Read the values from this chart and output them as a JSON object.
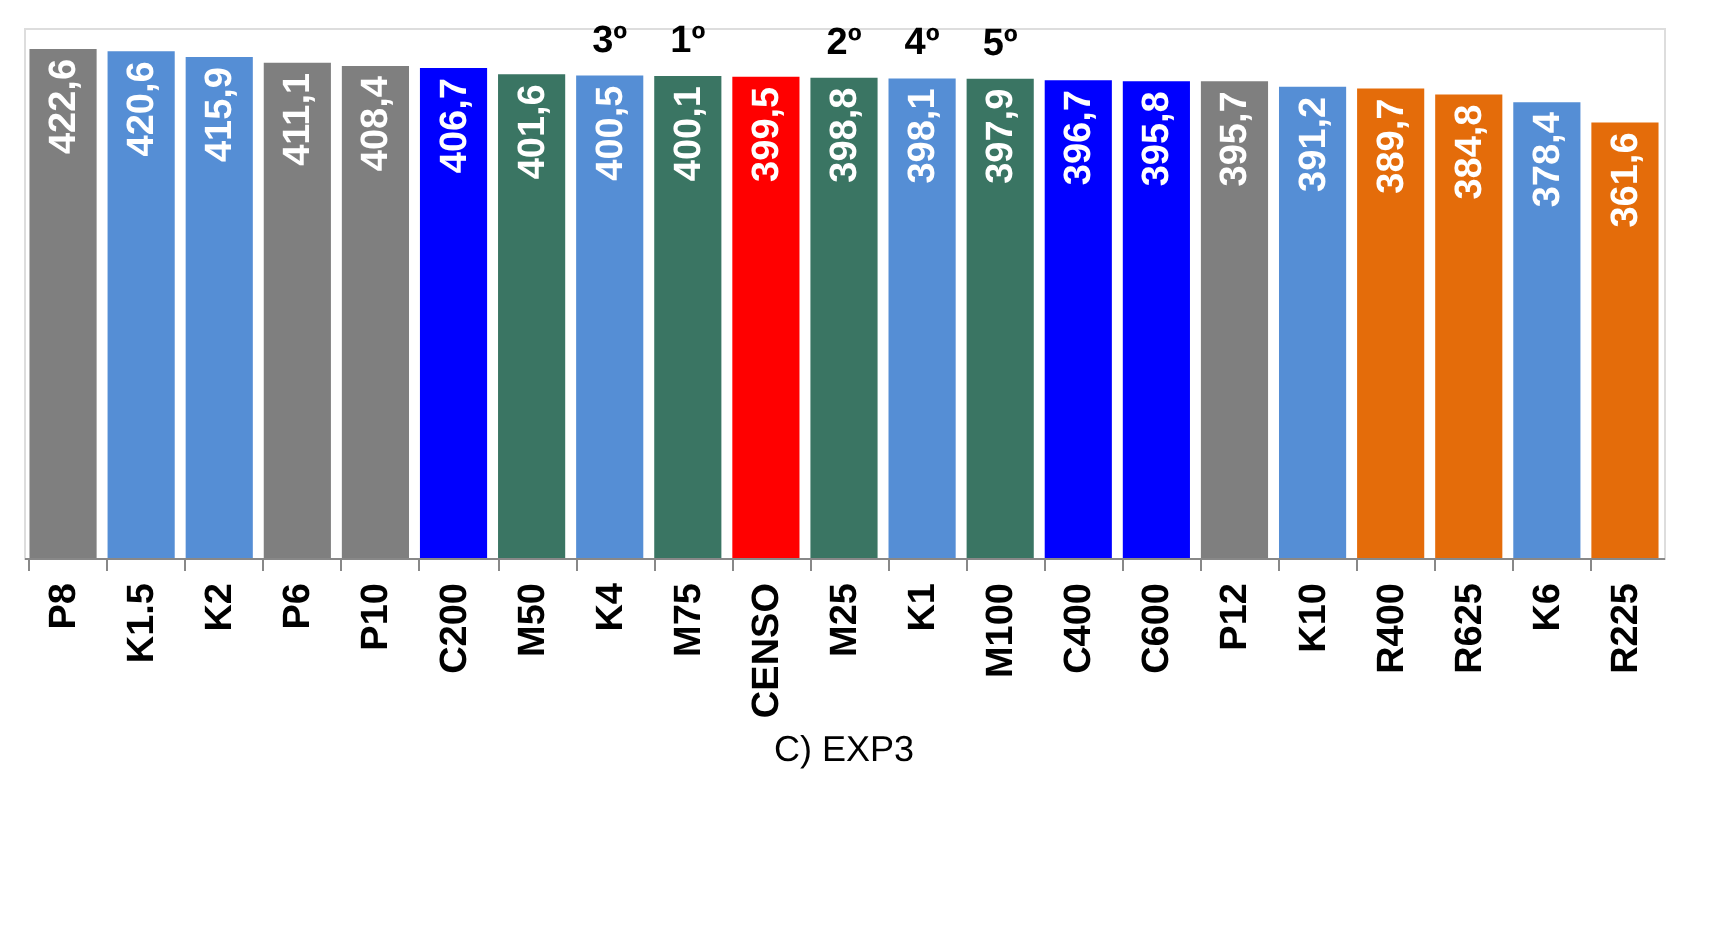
{
  "chart_data": {
    "type": "bar",
    "title": "C) EXP3",
    "categories": [
      "P8",
      "K1.5",
      "K2",
      "P6",
      "P10",
      "C200",
      "M50",
      "K4",
      "M75",
      "CENSO",
      "M25",
      "K1",
      "M100",
      "C400",
      "C600",
      "P12",
      "K10",
      "R400",
      "R625",
      "K6",
      "R225"
    ],
    "values": [
      422.6,
      420.6,
      415.9,
      411.1,
      408.4,
      406.7,
      401.6,
      400.5,
      400.1,
      399.5,
      398.8,
      398.1,
      397.9,
      396.7,
      395.8,
      395.7,
      391.2,
      389.7,
      384.8,
      378.4,
      361.6
    ],
    "value_labels": [
      "422,6",
      "420,6",
      "415,9",
      "411,1",
      "408,4",
      "406,7",
      "401,6",
      "400,5",
      "400,1",
      "399,5",
      "398,8",
      "398,1",
      "397,9",
      "396,7",
      "395,8",
      "395,7",
      "391,2",
      "389,7",
      "384,8",
      "378,4",
      "361,6"
    ],
    "colors": [
      "#7f7f7f",
      "#558ed5",
      "#558ed5",
      "#7f7f7f",
      "#7f7f7f",
      "#0000ff",
      "#3a7563",
      "#558ed5",
      "#3a7563",
      "#ff0000",
      "#3a7563",
      "#558ed5",
      "#3a7563",
      "#0000ff",
      "#0000ff",
      "#7f7f7f",
      "#558ed5",
      "#e46c0a",
      "#e46c0a",
      "#558ed5",
      "#e46c0a"
    ],
    "annotations": [
      {
        "text": "3º",
        "x": "K4",
        "y": 400.5
      },
      {
        "text": "1º",
        "x": "M75",
        "y": 400.1
      },
      {
        "text": "2º",
        "x": "M25",
        "y": 398.8
      },
      {
        "text": "4º",
        "x": "K1",
        "y": 398.1
      },
      {
        "text": "5º",
        "x": "M100",
        "y": 397.9
      }
    ],
    "ylim": [
      0,
      440
    ],
    "grid": false
  }
}
